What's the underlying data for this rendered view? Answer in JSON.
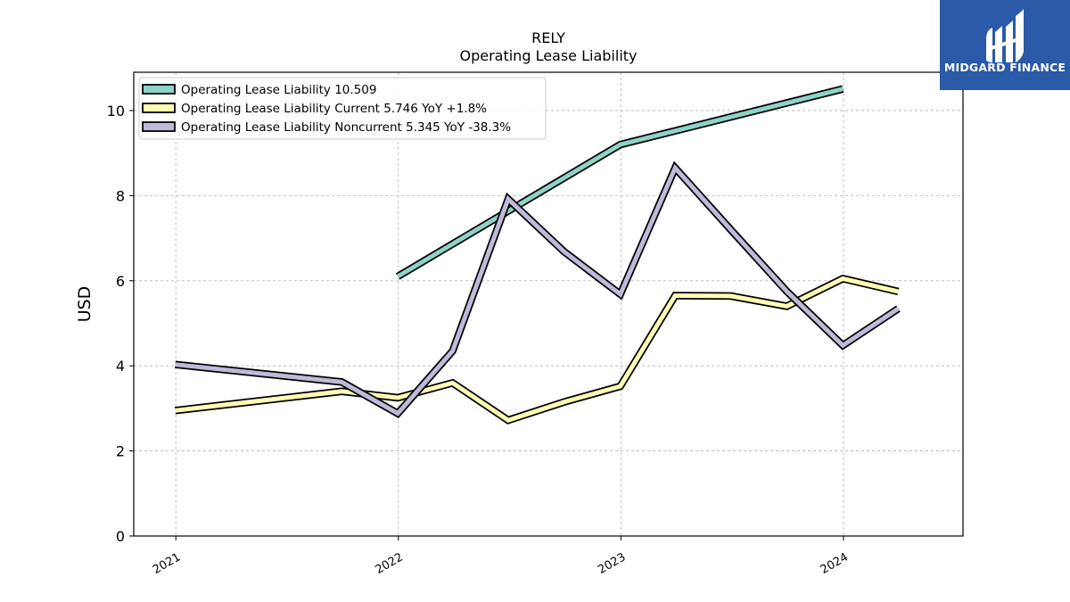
{
  "chart_data": {
    "type": "line",
    "title": "RELY",
    "subtitle": "Operating Lease Liability",
    "xlabel": "",
    "ylabel": "USD",
    "ylim": [
      0,
      10.9
    ],
    "yticks": [
      0,
      2,
      4,
      6,
      8,
      10
    ],
    "xlim": [
      "2020-10-24",
      "2024-07-15"
    ],
    "xticks": [
      "2021-01-01",
      "2022-01-01",
      "2023-01-01",
      "2024-01-01"
    ],
    "xtick_labels": [
      "2021",
      "2022",
      "2023",
      "2024"
    ],
    "grid": true,
    "legend_position": "top-left",
    "series": [
      {
        "name": "Operating Lease Liability",
        "legend_label": "Operating Lease Liability  10.509",
        "color": "#8dd3c7",
        "points": [
          {
            "x": "2021-12-31",
            "y": 6.1
          },
          {
            "x": "2022-12-31",
            "y": 9.2
          },
          {
            "x": "2023-12-31",
            "y": 10.509
          }
        ]
      },
      {
        "name": "Operating Lease Liability Current",
        "legend_label": "Operating Lease Liability Current  5.746 YoY +1.8%",
        "color": "#ffffb3",
        "points": [
          {
            "x": "2020-12-31",
            "y": 2.95
          },
          {
            "x": "2021-09-30",
            "y": 3.4
          },
          {
            "x": "2021-12-31",
            "y": 3.25
          },
          {
            "x": "2022-03-31",
            "y": 3.6
          },
          {
            "x": "2022-06-30",
            "y": 2.72
          },
          {
            "x": "2022-09-30",
            "y": 3.15
          },
          {
            "x": "2022-12-31",
            "y": 3.52
          },
          {
            "x": "2023-03-31",
            "y": 5.65
          },
          {
            "x": "2023-06-30",
            "y": 5.64
          },
          {
            "x": "2023-09-30",
            "y": 5.4
          },
          {
            "x": "2023-12-31",
            "y": 6.05
          },
          {
            "x": "2024-03-31",
            "y": 5.746
          }
        ]
      },
      {
        "name": "Operating Lease Liability Noncurrent",
        "legend_label": "Operating Lease Liability Noncurrent  5.345 YoY -38.3%",
        "color": "#bebada",
        "points": [
          {
            "x": "2020-12-31",
            "y": 4.03
          },
          {
            "x": "2021-09-30",
            "y": 3.62
          },
          {
            "x": "2021-12-31",
            "y": 2.88
          },
          {
            "x": "2022-03-31",
            "y": 4.35
          },
          {
            "x": "2022-06-30",
            "y": 7.92
          },
          {
            "x": "2022-09-30",
            "y": 6.68
          },
          {
            "x": "2022-12-31",
            "y": 5.68
          },
          {
            "x": "2023-03-31",
            "y": 8.65
          },
          {
            "x": "2023-06-30",
            "y": 7.2
          },
          {
            "x": "2023-09-30",
            "y": 5.75
          },
          {
            "x": "2023-12-31",
            "y": 4.48
          },
          {
            "x": "2024-03-31",
            "y": 5.345
          }
        ]
      }
    ]
  },
  "brand": {
    "name": "MIDGARD FINANCE",
    "color": "#2a5aa8"
  },
  "colors": {
    "outline": "#000000",
    "grid": "#b0b0b0"
  }
}
